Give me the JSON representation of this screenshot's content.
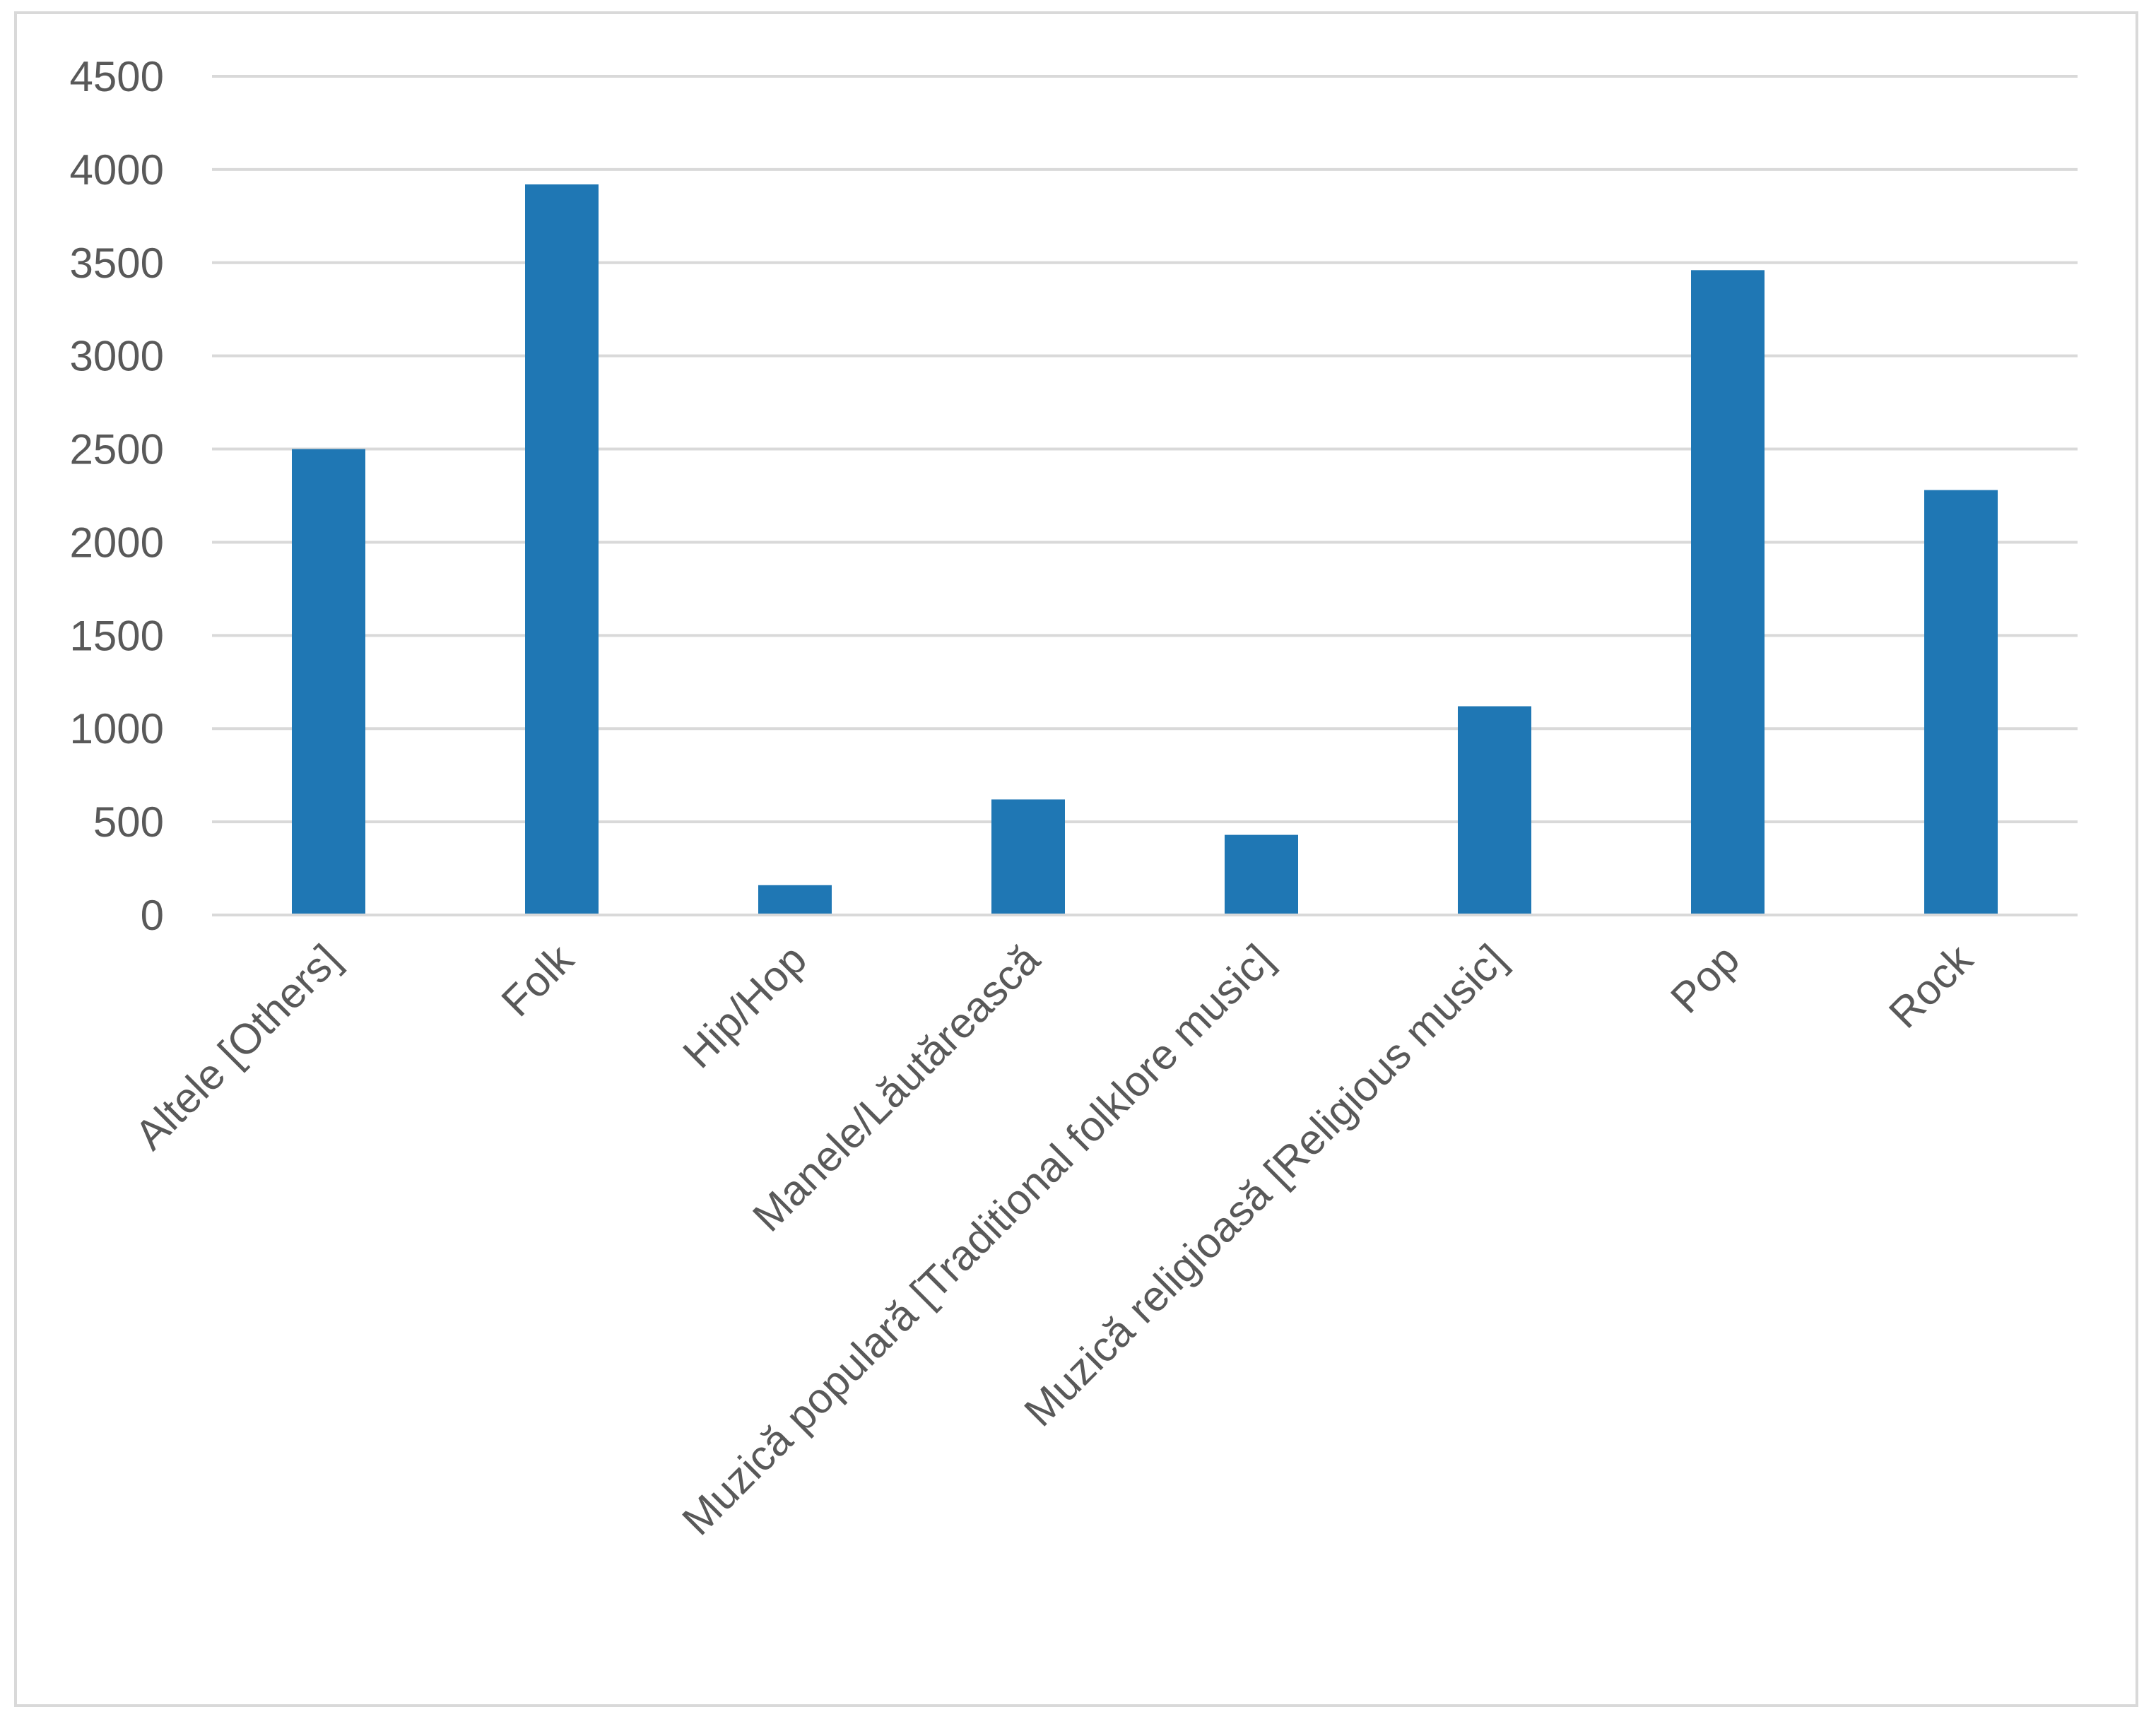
{
  "chart_data": {
    "type": "bar",
    "title": "",
    "xlabel": "",
    "ylabel": "",
    "ylim": [
      0,
      4500
    ],
    "yticks": [
      0,
      500,
      1000,
      1500,
      2000,
      2500,
      3000,
      3500,
      4000,
      4500
    ],
    "grid": true,
    "legend": "none",
    "bar_color": "#1f77b4",
    "categories": [
      "Altele [Others]",
      "Folk",
      "Hip/Hop",
      "Manele/Lăutărească",
      "Muzică populară [Traditional folklore music]",
      "Muzică religioasă [Religious music]",
      "Pop",
      "Rock"
    ],
    "values": [
      2500,
      3920,
      160,
      620,
      430,
      1120,
      3460,
      2280
    ]
  }
}
